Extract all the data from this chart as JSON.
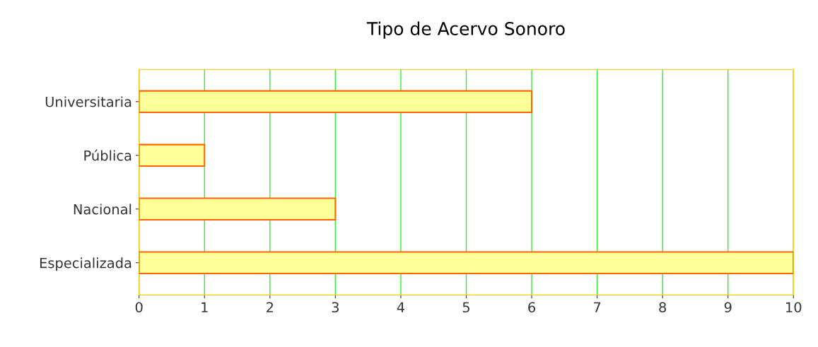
{
  "chart_data": {
    "type": "bar",
    "orientation": "horizontal",
    "title": "Tipo de Acervo Sonoro",
    "categories": [
      "Universitaria",
      "Pública",
      "Nacional",
      "Especializada"
    ],
    "values": [
      6,
      1,
      3,
      10
    ],
    "color": "#ffff99",
    "xlim": [
      0,
      10
    ],
    "xticks": [
      0,
      1,
      2,
      3,
      4,
      5,
      6,
      7,
      8,
      9,
      10
    ],
    "grid": "x"
  }
}
